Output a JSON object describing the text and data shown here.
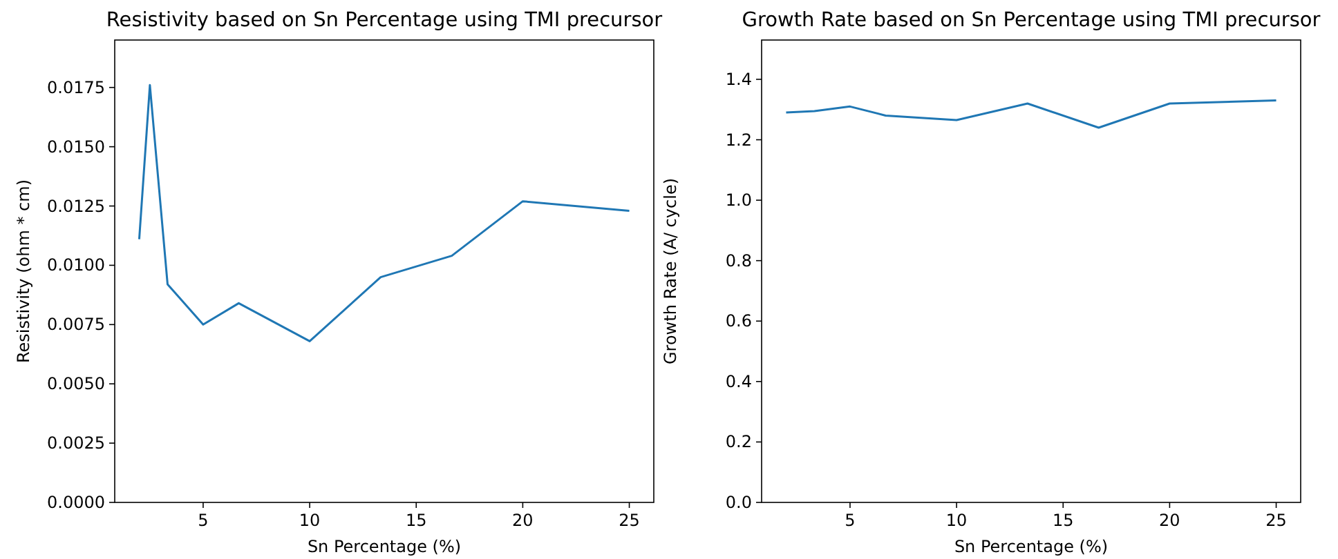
{
  "chart_data": [
    {
      "type": "line",
      "title": "Resistivity based on Sn Percentage using TMI precursor",
      "xlabel": "Sn Percentage (%)",
      "ylabel": "Resistivity (ohm * cm)",
      "x": [
        2,
        2.5,
        3.33,
        5,
        6.67,
        10,
        13.33,
        16.67,
        20,
        25
      ],
      "series": [
        {
          "color": "#1f77b4",
          "values": [
            0.0111,
            0.0176,
            0.0092,
            0.0075,
            0.0084,
            0.0068,
            0.0095,
            0.0104,
            0.0127,
            0.0123
          ]
        }
      ],
      "xlim": [
        0.85,
        26.15
      ],
      "xticks": [
        5,
        10,
        15,
        20,
        25
      ],
      "ylim": [
        0,
        0.0195
      ],
      "yticks": [
        {
          "value": 0,
          "label": "0.0000"
        },
        {
          "value": 0.0025,
          "label": "0.0025"
        },
        {
          "value": 0.005,
          "label": "0.0050"
        },
        {
          "value": 0.0075,
          "label": "0.0075"
        },
        {
          "value": 0.01,
          "label": "0.0100"
        },
        {
          "value": 0.0125,
          "label": "0.0125"
        },
        {
          "value": 0.015,
          "label": "0.0150"
        },
        {
          "value": 0.0175,
          "label": "0.0175"
        }
      ],
      "grid": false
    },
    {
      "type": "line",
      "title": "Growth Rate based on Sn Percentage using TMI precursor",
      "xlabel": "Sn Percentage (%)",
      "ylabel": "Growth Rate (A/ cycle)",
      "x": [
        2,
        3.33,
        5,
        6.67,
        10,
        13.33,
        16.67,
        20,
        25
      ],
      "series": [
        {
          "color": "#1f77b4",
          "values": [
            1.29,
            1.295,
            1.31,
            1.28,
            1.265,
            1.32,
            1.24,
            1.32,
            1.33
          ]
        }
      ],
      "xlim": [
        0.85,
        26.15
      ],
      "xticks": [
        5,
        10,
        15,
        20,
        25
      ],
      "ylim": [
        0,
        1.53
      ],
      "yticks": [
        {
          "value": 0,
          "label": "0.0"
        },
        {
          "value": 0.2,
          "label": "0.2"
        },
        {
          "value": 0.4,
          "label": "0.4"
        },
        {
          "value": 0.6,
          "label": "0.6"
        },
        {
          "value": 0.8,
          "label": "0.8"
        },
        {
          "value": 1.0,
          "label": "1.0"
        },
        {
          "value": 1.2,
          "label": "1.2"
        },
        {
          "value": 1.4,
          "label": "1.4"
        }
      ],
      "grid": false
    }
  ]
}
